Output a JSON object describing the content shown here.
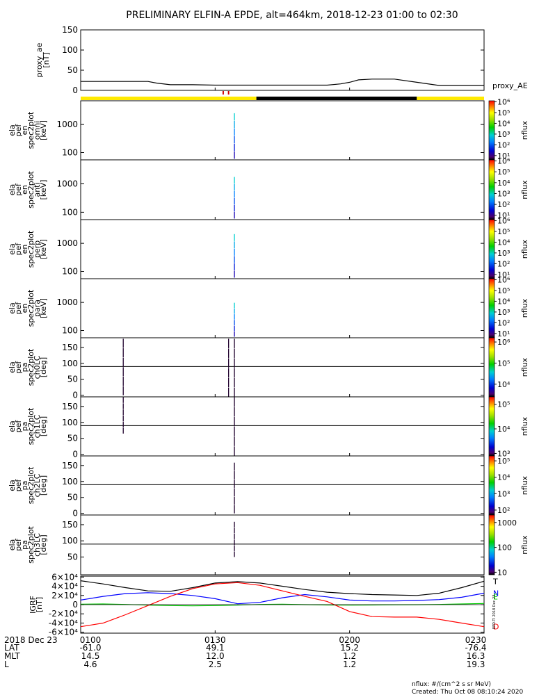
{
  "title": "PRELIMINARY ELFIN-A EPDE, alt=464km, 2018-12-23 01:00 to 02:30",
  "footer": {
    "units": "nflux: #/(cm^2 s sr MeV)",
    "created": "Created: Thu Oct 08 08:10:24 2020"
  },
  "side_note": "EPD-TI 2018 Dec 23 ...",
  "ephemeris": {
    "date_label": "2018 Dec 23",
    "rows": [
      {
        "label": "LAT",
        "values": [
          "-61.0",
          "49.1",
          "15.2",
          "-76.4"
        ]
      },
      {
        "label": "MLT",
        "values": [
          "14.5",
          "12.0",
          "1.2",
          "16.3"
        ]
      },
      {
        "label": "L",
        "values": [
          "4.6",
          "2.5",
          "1.2",
          "19.3"
        ]
      }
    ]
  },
  "colors": {
    "fill_yellow": "#ffea00",
    "fill_black": "#000000",
    "red": "#ff0000",
    "blue": "#0000ff",
    "green": "#00cc00",
    "black": "#000000"
  },
  "chart_data": [
    {
      "type": "line",
      "ylabel": [
        "proxy_ae",
        "[nT]"
      ],
      "legend": "proxy_AE",
      "ylim": [
        0,
        150
      ],
      "yticks": [
        0,
        50,
        100,
        150
      ],
      "x_minutes": [
        0,
        5,
        10,
        15,
        17,
        20,
        25,
        30,
        35,
        40,
        45,
        50,
        55,
        58,
        60,
        62,
        65,
        70,
        75,
        80,
        85,
        90
      ],
      "values": [
        22,
        22,
        22,
        22,
        18,
        14,
        14,
        13,
        13,
        13,
        13,
        13,
        13,
        16,
        20,
        26,
        28,
        28,
        20,
        12,
        12,
        12
      ]
    },
    {
      "type": "bar",
      "label": "coverage",
      "segments": [
        {
          "x0": 0,
          "x1": 39.2,
          "color": "#ffea00"
        },
        {
          "x0": 39.2,
          "x1": 75,
          "color": "#000000"
        },
        {
          "x0": 75,
          "x1": 90,
          "color": "#ffea00"
        }
      ],
      "marks": [
        31.8,
        33.0
      ]
    },
    {
      "type": "heatmap",
      "ylabel": [
        "ela",
        "pef",
        "en",
        "spec2plot",
        "omni",
        "[keV]"
      ],
      "yscale": "log",
      "ylim": [
        55,
        7000
      ],
      "yticks": [
        100,
        1000
      ],
      "colorbar": {
        "label": "nflux",
        "ticks": [
          1,
          2,
          3,
          4,
          5,
          6
        ],
        "tick_labels": [
          "10¹",
          "10²",
          "10³",
          "10⁴",
          "10⁵",
          "10⁶"
        ],
        "range": [
          0.6,
          6.1
        ]
      },
      "features": [
        {
          "x": 34.3,
          "y0": 60,
          "y1": 2600
        }
      ]
    },
    {
      "type": "heatmap",
      "ylabel": [
        "ela",
        "pef",
        "en",
        "spec2plot",
        "anti",
        "[keV]"
      ],
      "yscale": "log",
      "ylim": [
        55,
        7000
      ],
      "yticks": [
        100,
        1000
      ],
      "colorbar": {
        "label": "nflux",
        "ticks": [
          1,
          2,
          3,
          4,
          5,
          6
        ],
        "tick_labels": [
          "10¹",
          "10²",
          "10³",
          "10⁴",
          "10⁵",
          "10⁶"
        ],
        "range": [
          0.6,
          6.1
        ]
      },
      "features": [
        {
          "x": 34.3,
          "y0": 60,
          "y1": 1800
        }
      ]
    },
    {
      "type": "heatmap",
      "ylabel": [
        "ela",
        "pef",
        "en",
        "spec2plot",
        "perp",
        "[keV]"
      ],
      "yscale": "log",
      "ylim": [
        55,
        7000
      ],
      "yticks": [
        100,
        1000
      ],
      "colorbar": {
        "label": "nflux",
        "ticks": [
          1,
          2,
          3,
          4,
          5,
          6
        ],
        "tick_labels": [
          "10¹",
          "10²",
          "10³",
          "10⁴",
          "10⁵",
          "10⁶"
        ],
        "range": [
          0.6,
          6.1
        ]
      },
      "features": [
        {
          "x": 34.3,
          "y0": 60,
          "y1": 2200
        }
      ]
    },
    {
      "type": "heatmap",
      "ylabel": [
        "ela",
        "pef",
        "en",
        "spec2plot",
        "para",
        "[keV]"
      ],
      "yscale": "log",
      "ylim": [
        55,
        7000
      ],
      "yticks": [
        100,
        1000
      ],
      "colorbar": {
        "label": "nflux",
        "ticks": [
          1,
          2,
          3,
          4,
          5,
          6
        ],
        "tick_labels": [
          "10¹",
          "10²",
          "10³",
          "10⁴",
          "10⁵",
          "10⁶"
        ],
        "range": [
          0.6,
          6.1
        ]
      },
      "features": [
        {
          "x": 34.3,
          "y0": 60,
          "y1": 1000
        }
      ]
    },
    {
      "type": "heatmap",
      "ylabel": [
        "ela",
        "pef",
        "pa",
        "spec2plot",
        "ch0LC",
        "[deg]"
      ],
      "yscale": "linear",
      "ylim": [
        -5,
        180
      ],
      "yticks": [
        0,
        50,
        100,
        150
      ],
      "hline": 90,
      "colorbar": {
        "label": "nflux",
        "ticks": [
          4,
          5,
          6
        ],
        "tick_labels": [
          "10⁴",
          "10⁵",
          "10⁶"
        ],
        "range": [
          3.4,
          6.2
        ]
      },
      "features": [
        {
          "x": 9.5,
          "y0": 0,
          "y1": 178
        },
        {
          "x": 33.0,
          "y0": -30,
          "y1": 178
        },
        {
          "x": 34.3,
          "y0": -5,
          "y1": 178
        }
      ]
    },
    {
      "type": "heatmap",
      "ylabel": [
        "ela",
        "pef",
        "pa",
        "spec2plot",
        "ch1LC",
        "[deg]"
      ],
      "yscale": "linear",
      "ylim": [
        -5,
        180
      ],
      "yticks": [
        0,
        50,
        100,
        150
      ],
      "hline": 90,
      "colorbar": {
        "label": "nflux",
        "ticks": [
          3,
          4,
          5
        ],
        "tick_labels": [
          "10³",
          "10⁴",
          "10⁵"
        ],
        "range": [
          2.9,
          5.3
        ]
      },
      "features": [
        {
          "x": 9.5,
          "y0": 65,
          "y1": 180
        },
        {
          "x": 34.3,
          "y0": -5,
          "y1": 180
        }
      ]
    },
    {
      "type": "heatmap",
      "ylabel": [
        "ela",
        "pef",
        "pa",
        "spec2plot",
        "ch2LC",
        "[deg]"
      ],
      "yscale": "linear",
      "ylim": [
        -5,
        180
      ],
      "yticks": [
        0,
        50,
        100,
        150
      ],
      "hline": 90,
      "colorbar": {
        "label": "nflux",
        "ticks": [
          2,
          3,
          4,
          5
        ],
        "tick_labels": [
          "10²",
          "10³",
          "10⁴",
          "10⁵"
        ],
        "range": [
          1.7,
          5.3
        ]
      },
      "features": [
        {
          "x": 34.3,
          "y0": 0,
          "y1": 160
        }
      ]
    },
    {
      "type": "heatmap",
      "ylabel": [
        "ela",
        "pef",
        "pa",
        "spec2plot",
        "ch3LC",
        "[deg]"
      ],
      "yscale": "linear",
      "ylim": [
        -5,
        180
      ],
      "yticks": [
        50,
        100,
        150
      ],
      "hline": 90,
      "colorbar": {
        "label": "nflux",
        "ticks": [
          1,
          2,
          3
        ],
        "tick_labels": [
          "10",
          "100",
          "1000"
        ],
        "range": [
          0.9,
          3.3
        ]
      },
      "features": [
        {
          "x": 34.3,
          "y0": 50,
          "y1": 160
        }
      ]
    },
    {
      "type": "line",
      "ylabel": [
        "IGRF",
        "[nT]"
      ],
      "ylim": [
        -62000,
        62000
      ],
      "yticks": [
        -60000,
        -40000,
        -20000,
        0,
        20000,
        40000,
        60000
      ],
      "ytick_labels": [
        "-6×10⁴",
        "-4×10⁴",
        "-2×10⁴",
        "0",
        "2×10⁴",
        "4×10⁴",
        "6×10⁴"
      ],
      "x_minutes": [
        0,
        5,
        10,
        15,
        20,
        25,
        30,
        35,
        40,
        45,
        50,
        55,
        60,
        65,
        70,
        75,
        80,
        85,
        90
      ],
      "series": [
        {
          "name": "T",
          "color": "#000000",
          "values": [
            52000,
            45000,
            37000,
            30000,
            29000,
            37000,
            47000,
            50000,
            47000,
            40000,
            33000,
            27000,
            24000,
            22000,
            21000,
            20000,
            25000,
            37000,
            51000
          ]
        },
        {
          "name": "N",
          "color": "#0000ff",
          "values": [
            10000,
            18000,
            24000,
            26000,
            24000,
            20000,
            13000,
            2000,
            5000,
            15000,
            22000,
            17000,
            10000,
            8000,
            8000,
            9000,
            11000,
            16000,
            25000
          ]
        },
        {
          "name": "E",
          "color": "#00cc00",
          "values": [
            1000,
            1500,
            500,
            -1000,
            -2000,
            -2500,
            -2000,
            -1000,
            500,
            1000,
            0,
            -800,
            -1000,
            -800,
            -500,
            -200,
            500,
            1500,
            2500
          ]
        },
        {
          "name": "D",
          "color": "#ff0000",
          "values": [
            -48000,
            -40000,
            -22000,
            -2000,
            18000,
            35000,
            45000,
            48000,
            42000,
            30000,
            18000,
            7000,
            -15000,
            -26000,
            -27000,
            -27000,
            -32000,
            -40000,
            -48000
          ]
        }
      ]
    }
  ],
  "x_axis": {
    "ticks_minutes": [
      0,
      30,
      60,
      90
    ],
    "tick_labels": [
      "0100",
      "0130",
      "0200",
      "0230"
    ]
  }
}
